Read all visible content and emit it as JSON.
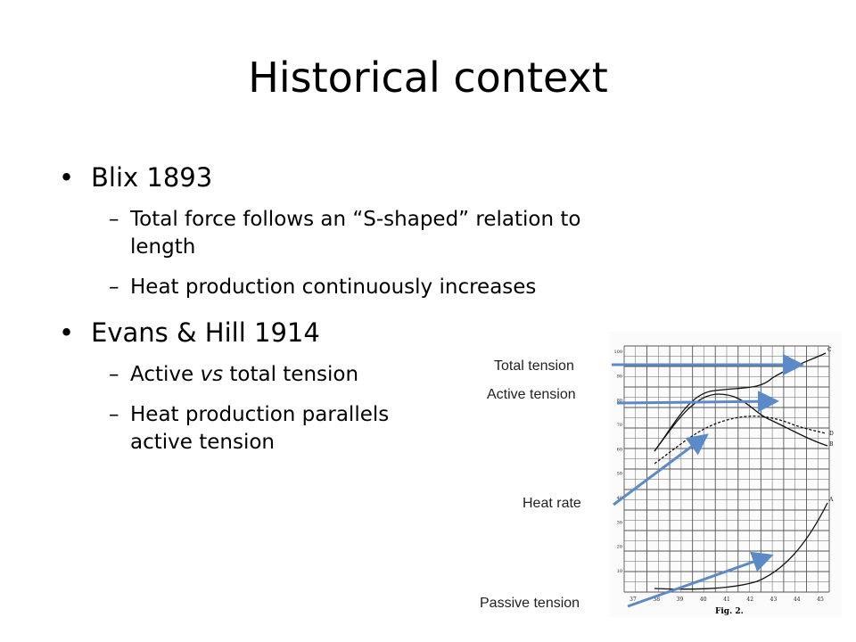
{
  "slide": {
    "title": "Historical context",
    "bullets": [
      {
        "text": "Blix 1893",
        "subs": [
          {
            "text": "Total force follows an “S-shaped” relation to",
            "cont": "length"
          },
          {
            "text": "Heat production continuously increases"
          }
        ]
      },
      {
        "text": "Evans & Hill 1914",
        "subs": [
          {
            "pre": "Active ",
            "em": "vs",
            "post": " total tension"
          },
          {
            "text": "Heat production parallels",
            "cont": "active tension"
          }
        ]
      }
    ]
  },
  "figure": {
    "caption": "Fig. 2.",
    "annotations": {
      "total": "Total tension",
      "active": "Active tension",
      "heat": "Heat rate",
      "passive": "Passive tension"
    },
    "x_ticks": [
      "37",
      "38",
      "39",
      "40",
      "41",
      "42",
      "43",
      "44",
      "45"
    ],
    "y_ticks": [
      "10",
      "20",
      "30",
      "40",
      "50",
      "60",
      "70",
      "80",
      "90",
      "100"
    ],
    "curve_markers": {
      "total": "C",
      "active": "B",
      "heat": "D",
      "passive": "A"
    },
    "arrow_color": "#5b8ac7"
  }
}
